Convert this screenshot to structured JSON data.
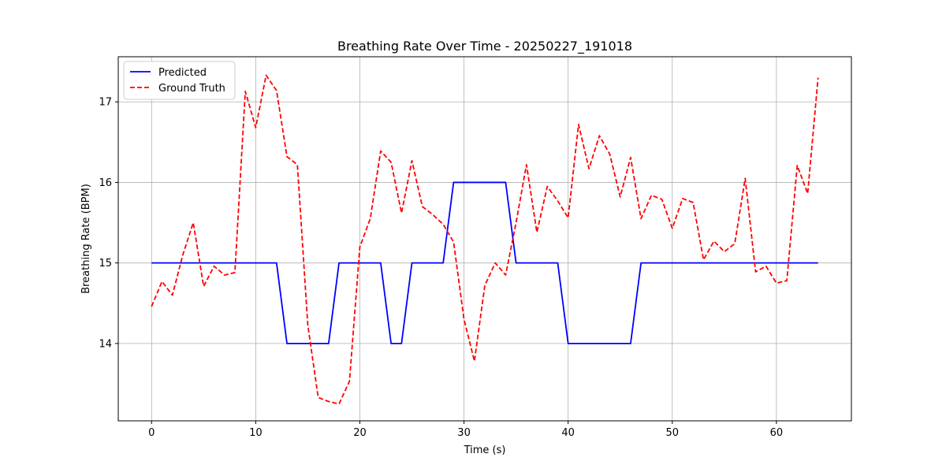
{
  "chart_data": {
    "type": "line",
    "title": "Breathing Rate Over Time - 20250227_191018",
    "xlabel": "Time (s)",
    "ylabel": "Breathing Rate (BPM)",
    "xlim": [
      -3.2,
      67.2
    ],
    "ylim": [
      13.04,
      17.56
    ],
    "xticks": [
      0,
      10,
      20,
      30,
      40,
      50,
      60
    ],
    "yticks": [
      14,
      15,
      16,
      17
    ],
    "grid": true,
    "legend_position": "top-left",
    "series": [
      {
        "name": "Predicted",
        "color": "#0000ff",
        "style": "solid",
        "x": [
          0,
          1,
          2,
          3,
          4,
          5,
          6,
          7,
          8,
          9,
          10,
          11,
          12,
          13,
          14,
          15,
          16,
          17,
          18,
          19,
          20,
          21,
          22,
          23,
          24,
          25,
          26,
          27,
          28,
          29,
          30,
          31,
          32,
          33,
          34,
          35,
          36,
          37,
          38,
          39,
          40,
          41,
          42,
          43,
          44,
          45,
          46,
          47,
          48,
          49,
          50,
          51,
          52,
          53,
          54,
          55,
          56,
          57,
          58,
          59,
          60,
          61,
          62,
          63,
          64
        ],
        "y": [
          15,
          15,
          15,
          15,
          15,
          15,
          15,
          15,
          15,
          15,
          15,
          15,
          15,
          14,
          14,
          14,
          14,
          14,
          15,
          15,
          15,
          15,
          15,
          14,
          14,
          15,
          15,
          15,
          15,
          16,
          16,
          16,
          16,
          16,
          16,
          15,
          15,
          15,
          15,
          15,
          14,
          14,
          14,
          14,
          14,
          14,
          14,
          15,
          15,
          15,
          15,
          15,
          15,
          15,
          15,
          15,
          15,
          15,
          15,
          15,
          15,
          15,
          15,
          15,
          15
        ]
      },
      {
        "name": "Ground Truth",
        "color": "#ff0000",
        "style": "dashed",
        "x": [
          0,
          1,
          2,
          3,
          4,
          5,
          6,
          7,
          8,
          9,
          10,
          11,
          12,
          13,
          14,
          15,
          16,
          17,
          18,
          19,
          20,
          21,
          22,
          23,
          24,
          25,
          26,
          27,
          28,
          29,
          30,
          31,
          32,
          33,
          34,
          35,
          36,
          37,
          38,
          39,
          40,
          41,
          42,
          43,
          44,
          45,
          46,
          47,
          48,
          49,
          50,
          51,
          52,
          53,
          54,
          55,
          56,
          57,
          58,
          59,
          60,
          61,
          62,
          63,
          64
        ],
        "y": [
          14.46,
          14.77,
          14.6,
          15.1,
          15.5,
          14.71,
          14.96,
          14.85,
          14.88,
          17.13,
          16.68,
          17.33,
          17.14,
          16.32,
          16.22,
          14.23,
          13.33,
          13.28,
          13.25,
          13.53,
          15.2,
          15.55,
          16.39,
          16.25,
          15.62,
          16.27,
          15.7,
          15.6,
          15.48,
          15.26,
          14.3,
          13.78,
          14.72,
          15.0,
          14.85,
          15.5,
          16.22,
          15.38,
          15.95,
          15.77,
          15.56,
          16.72,
          16.17,
          16.58,
          16.35,
          15.82,
          16.31,
          15.55,
          15.84,
          15.79,
          15.43,
          15.8,
          15.75,
          15.04,
          15.27,
          15.14,
          15.24,
          16.05,
          14.89,
          14.96,
          14.75,
          14.78,
          16.21,
          15.86,
          17.3
        ]
      }
    ]
  }
}
